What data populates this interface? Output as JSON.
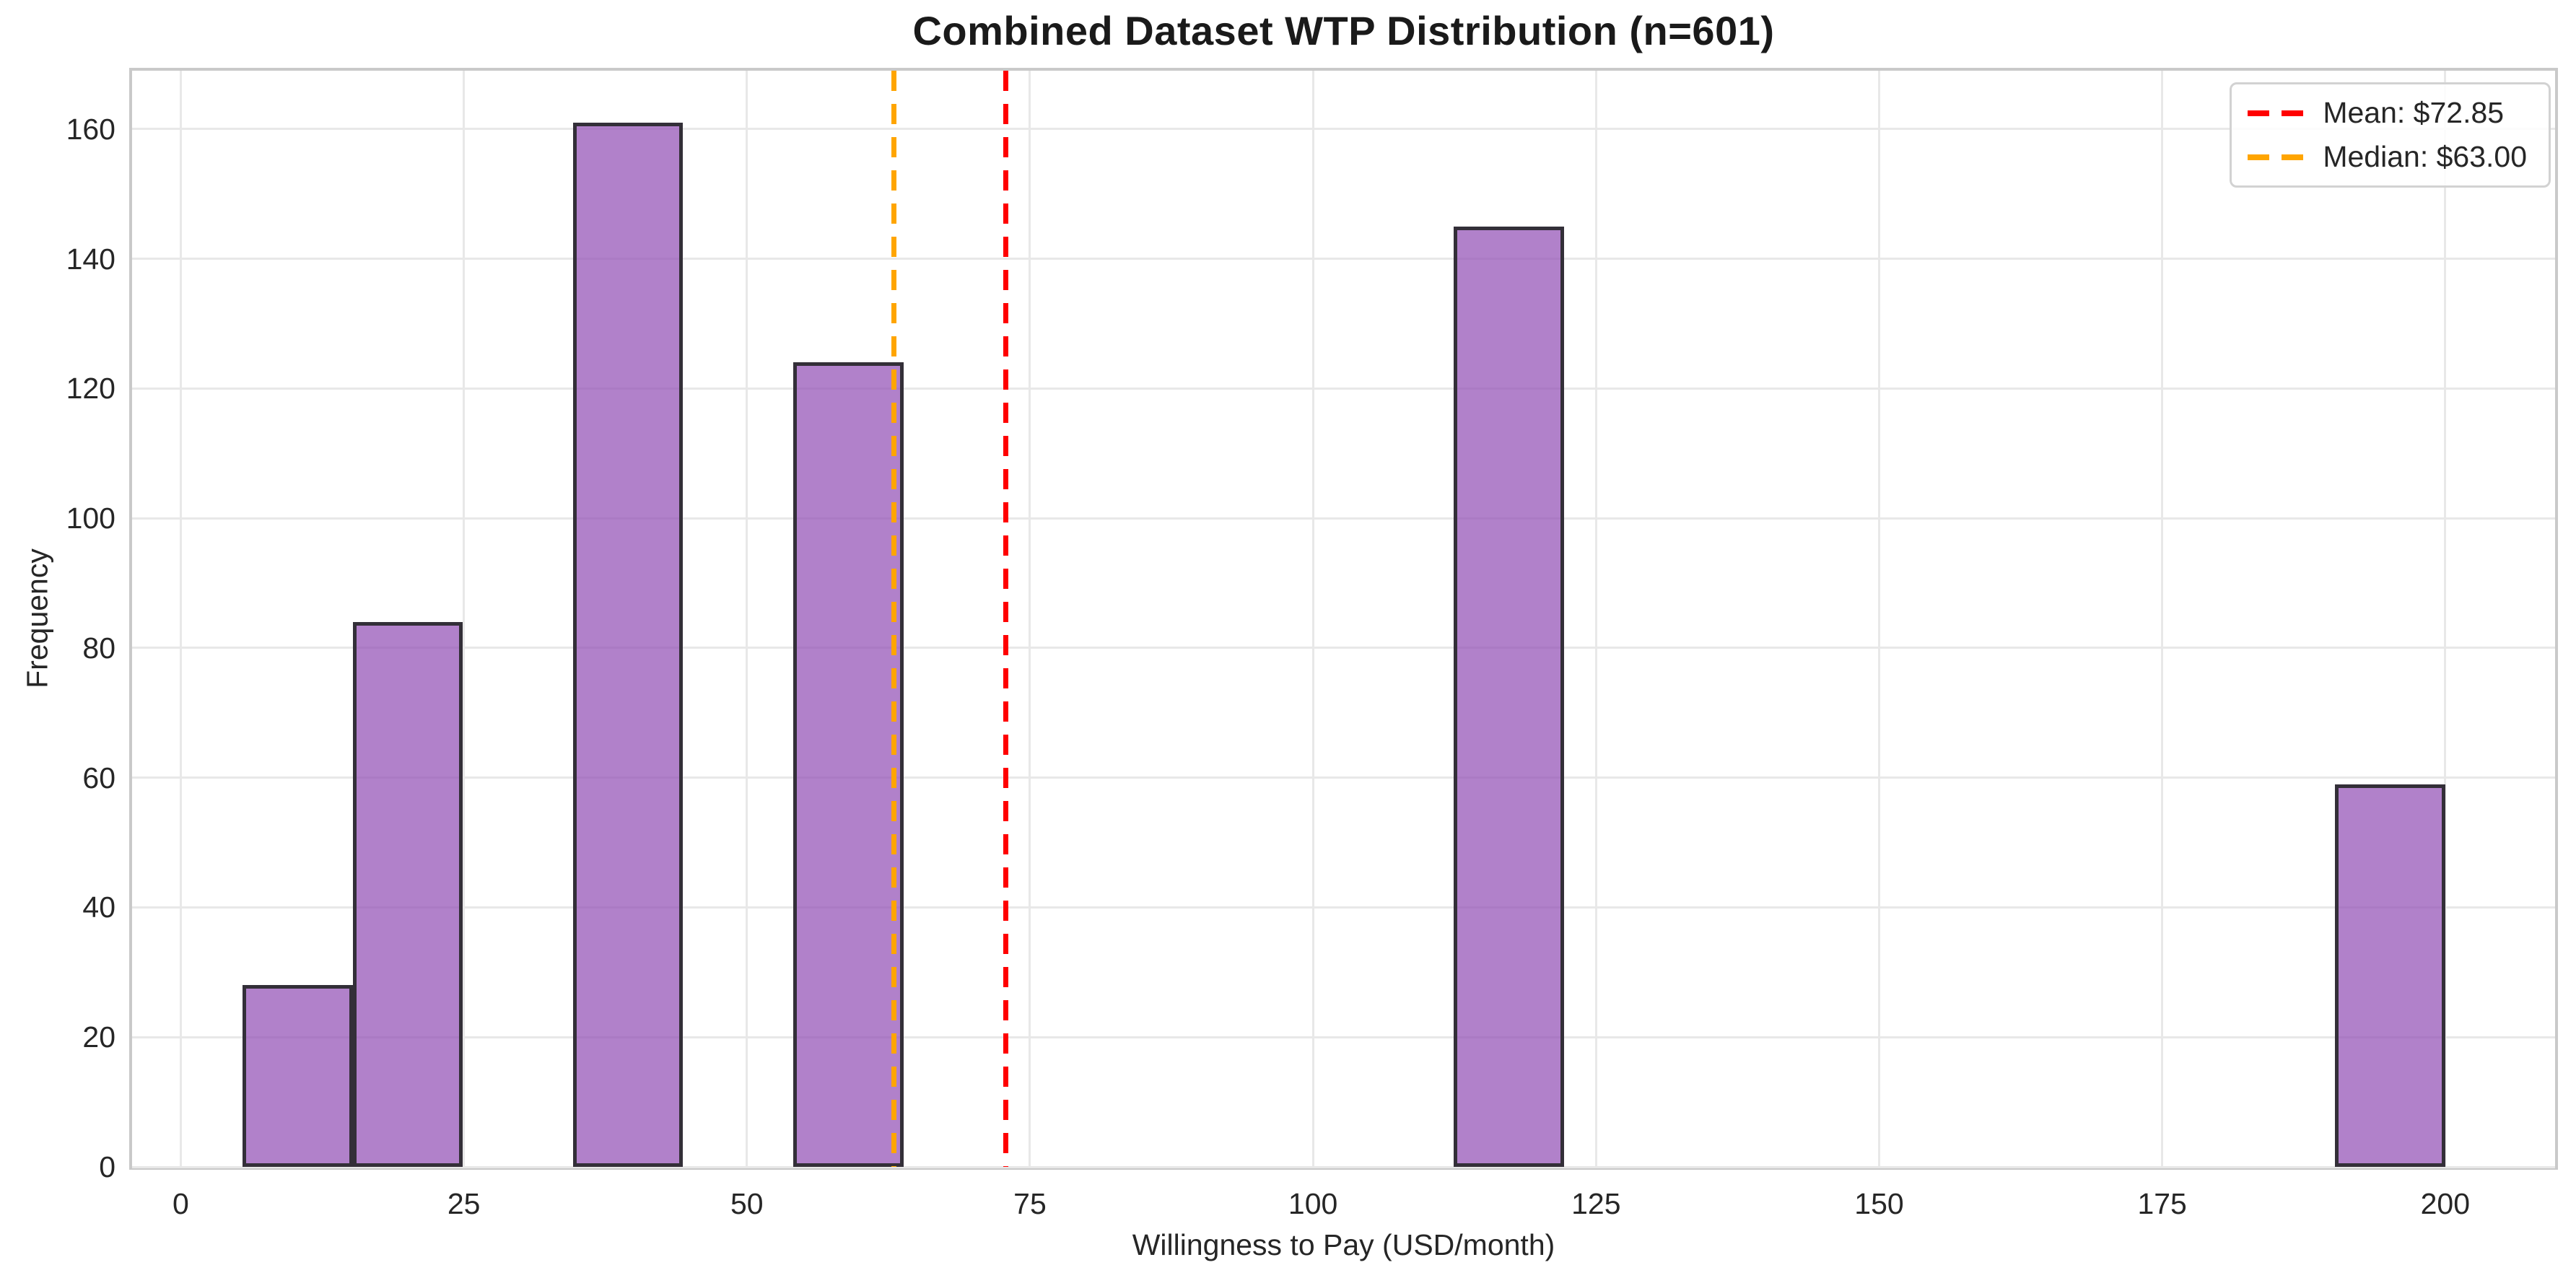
{
  "chart_data": {
    "type": "histogram",
    "title": "Combined Dataset WTP Distribution (n=601)",
    "xlabel": "Willingness to Pay (USD/month)",
    "ylabel": "Frequency",
    "sample_size": 601,
    "bars": [
      {
        "x0": 5.45,
        "x1": 15.18,
        "count": 28
      },
      {
        "x0": 15.18,
        "x1": 24.91,
        "count": 84
      },
      {
        "x0": 34.64,
        "x1": 44.36,
        "count": 161
      },
      {
        "x0": 54.09,
        "x1": 63.82,
        "count": 124
      },
      {
        "x0": 112.45,
        "x1": 122.18,
        "count": 145
      },
      {
        "x0": 190.27,
        "x1": 200.0,
        "count": 59
      }
    ],
    "x_ticks": [
      0,
      25,
      50,
      75,
      100,
      125,
      150,
      175,
      200
    ],
    "y_ticks": [
      0,
      20,
      40,
      60,
      80,
      100,
      120,
      140,
      160
    ],
    "xlim": [
      -4.3,
      209.7
    ],
    "ylim": [
      0,
      169
    ],
    "grid": true,
    "legend_position": "top-right",
    "reference_lines": [
      {
        "name": "mean",
        "value": 72.85,
        "label": "Mean: $72.85",
        "color": "#ff0000",
        "style": "dashed"
      },
      {
        "name": "median",
        "value": 63.0,
        "label": "Median: $63.00",
        "color": "#ffa500",
        "style": "dashed"
      }
    ],
    "colors": {
      "bar_fill": "rgba(147,81,182,0.72)",
      "bar_fill_flat": "#b78bc9",
      "bar_edge": "#332f38",
      "gridline": "#e8e8e8",
      "spine": "#c9c9c9",
      "text": "#262626"
    }
  }
}
